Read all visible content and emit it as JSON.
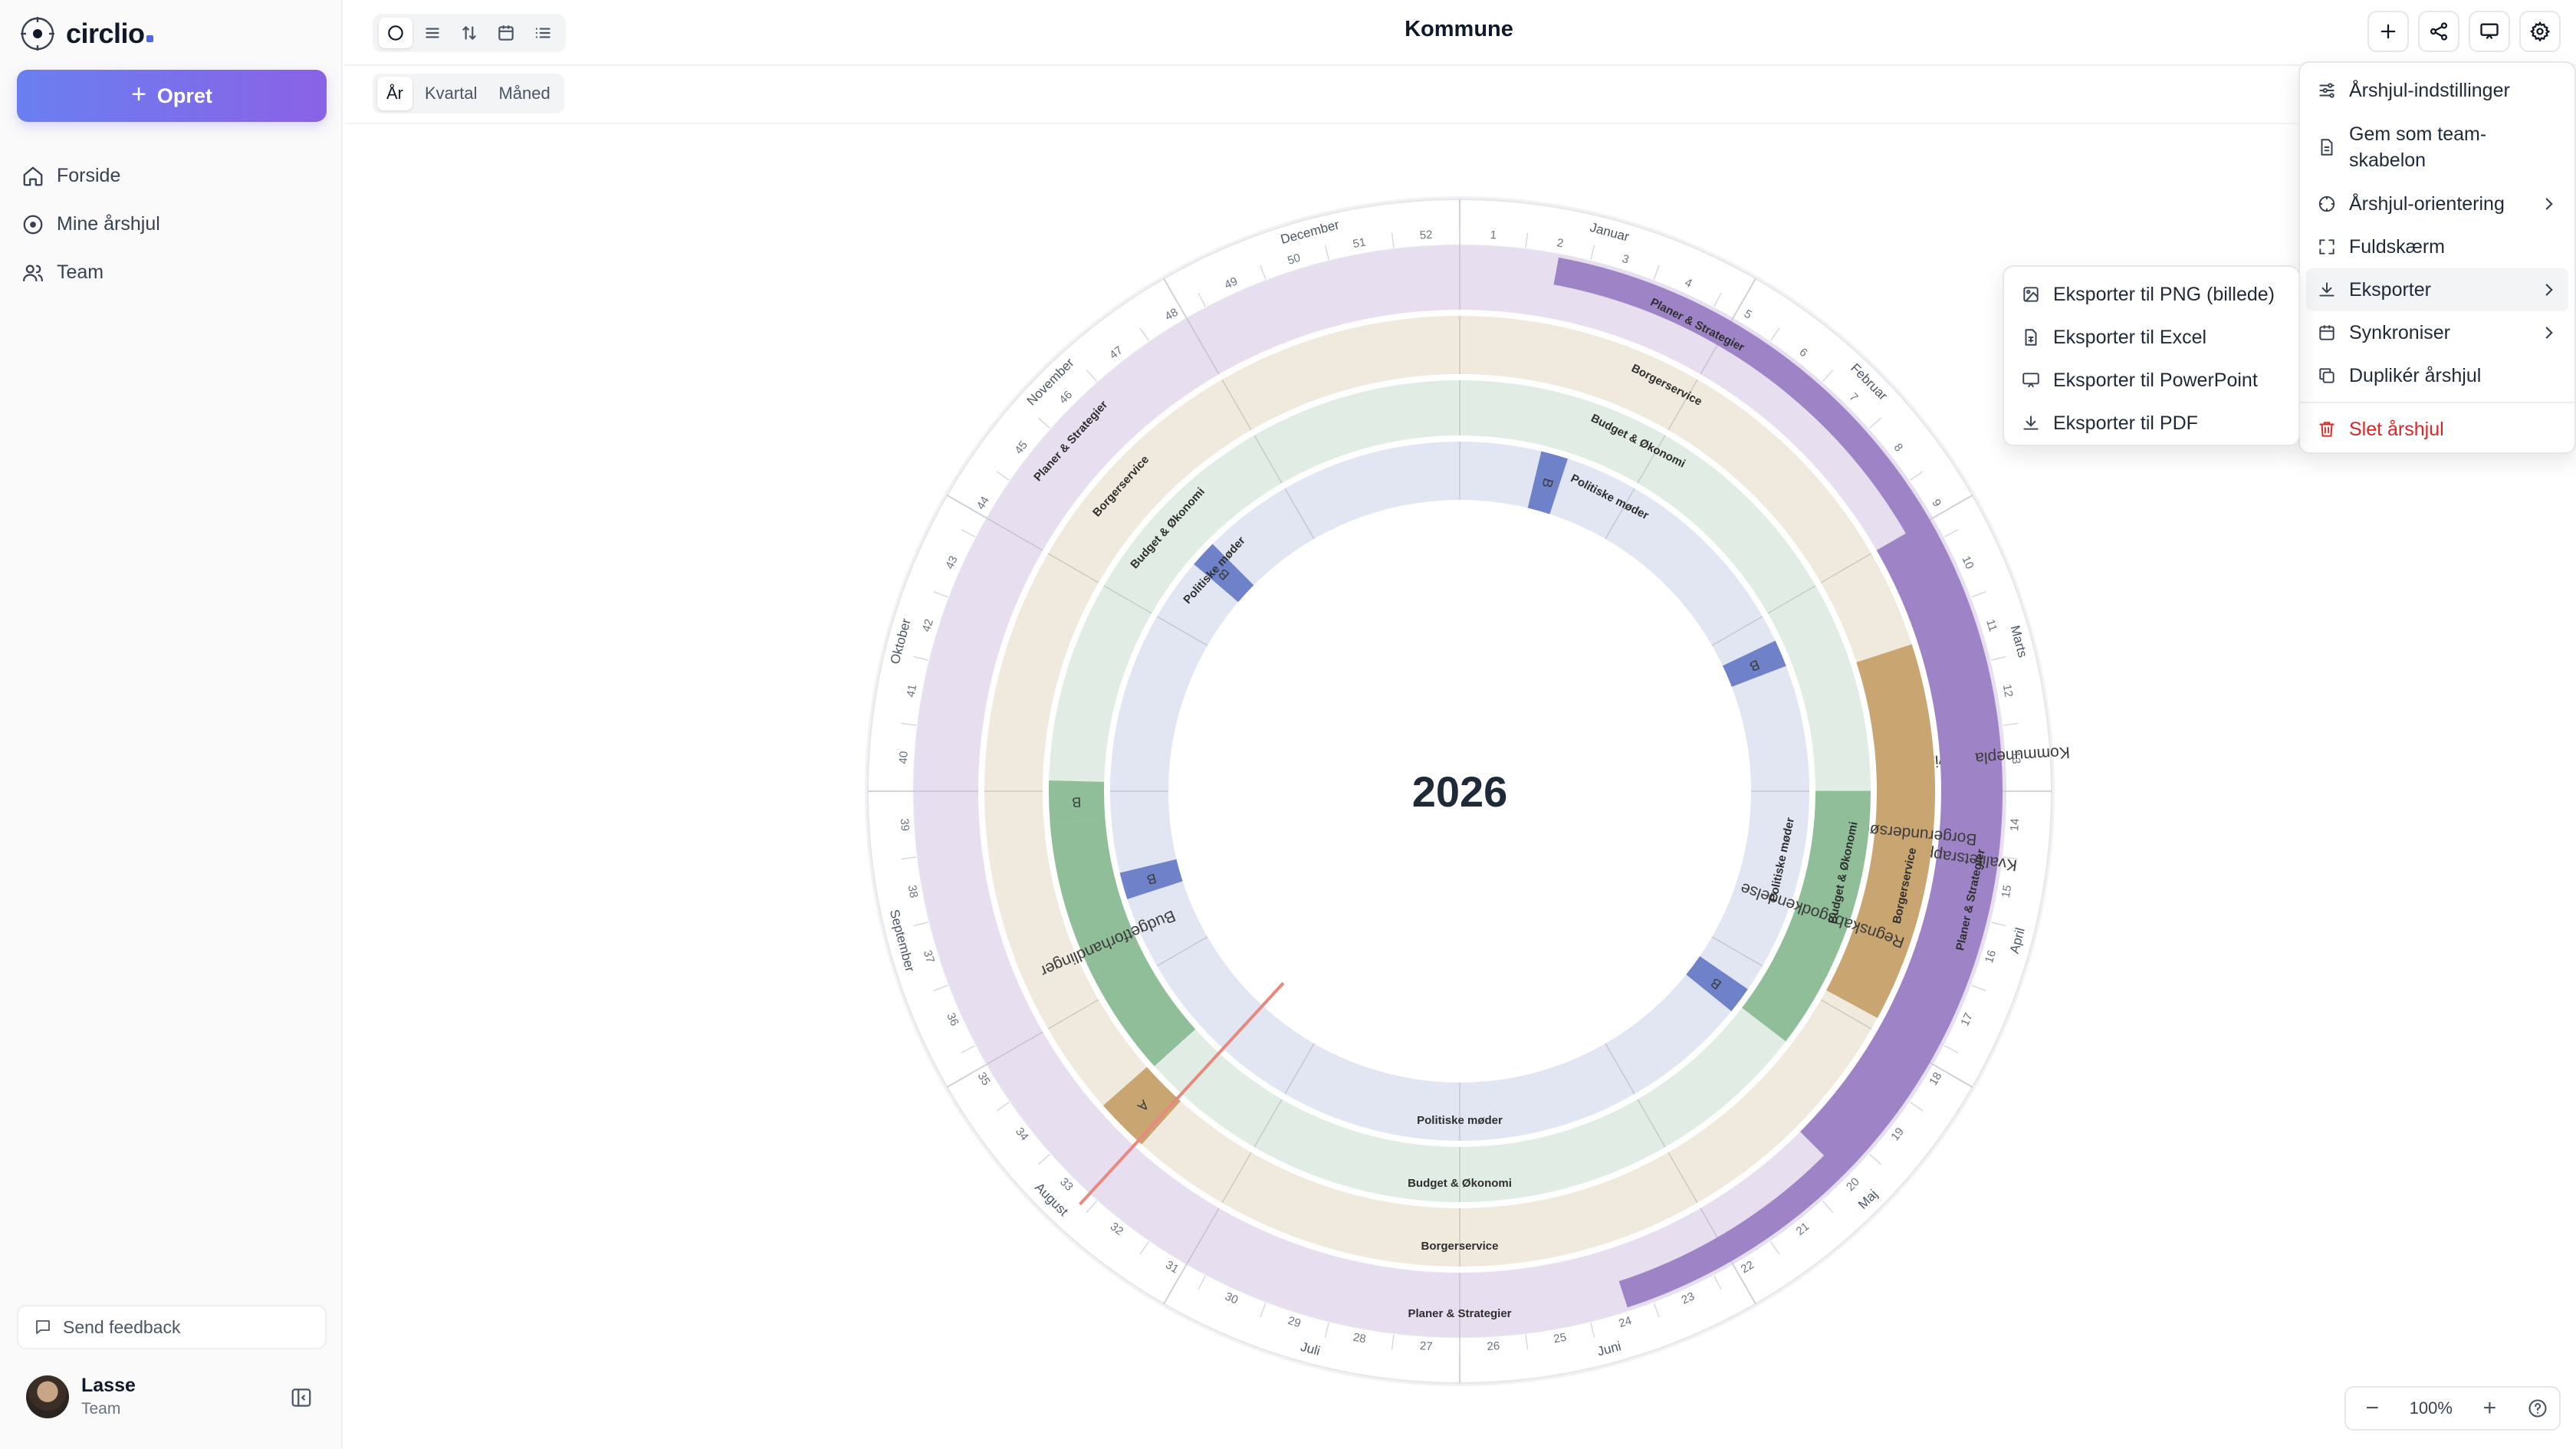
{
  "app": {
    "name": "circlio"
  },
  "sidebar": {
    "create_label": "Opret",
    "items": [
      {
        "label": "Forside",
        "icon": "home-icon"
      },
      {
        "label": "Mine årshjul",
        "icon": "circle-icon"
      },
      {
        "label": "Team",
        "icon": "users-icon"
      }
    ],
    "feedback_label": "Send feedback",
    "user": {
      "name": "Lasse",
      "role": "Team"
    }
  },
  "header": {
    "title": "Kommune"
  },
  "period_tabs": [
    {
      "label": "År",
      "active": true
    },
    {
      "label": "Kvartal",
      "active": false
    },
    {
      "label": "Måned",
      "active": false
    }
  ],
  "settings_menu": {
    "items": [
      {
        "label": "Årshjul-indstillinger",
        "icon": "sliders-icon"
      },
      {
        "label": "Gem som team-skabelon",
        "icon": "template-icon"
      },
      {
        "label": "Årshjul-orientering",
        "icon": "orientation-icon",
        "submenu": true
      },
      {
        "label": "Fuldskærm",
        "icon": "fullscreen-icon"
      },
      {
        "label": "Eksporter",
        "icon": "download-icon",
        "submenu": true,
        "hover": true
      },
      {
        "label": "Synkroniser",
        "icon": "calendar-icon",
        "submenu": true
      },
      {
        "label": "Duplikér årshjul",
        "icon": "copy-icon"
      },
      {
        "label": "Slet årshjul",
        "icon": "trash-icon",
        "danger": true
      }
    ]
  },
  "export_menu": {
    "items": [
      {
        "label": "Eksporter til PNG (billede)",
        "icon": "image-icon"
      },
      {
        "label": "Eksporter til Excel",
        "icon": "spreadsheet-icon"
      },
      {
        "label": "Eksporter til PowerPoint",
        "icon": "presentation-icon"
      },
      {
        "label": "Eksporter til PDF",
        "icon": "download-icon"
      }
    ]
  },
  "zoom": {
    "level": "100%"
  },
  "wheel": {
    "year": "2026",
    "months": [
      "Januar",
      "Februar",
      "Marts",
      "April",
      "Maj",
      "Juni",
      "Juli",
      "August",
      "September",
      "Oktober",
      "November",
      "December"
    ],
    "weeks": 52,
    "rings": [
      {
        "label": "Planer & Strategier",
        "color": "#e7def0"
      },
      {
        "label": "Borgerservice",
        "color": "#f0e9dd"
      },
      {
        "label": "Budget & Økonomi",
        "color": "#e1ede4"
      },
      {
        "label": "Politiske møder",
        "color": "#e2e6f3"
      }
    ],
    "events": [
      {
        "ring": "Planer & Strategier",
        "label": "Kommuneplan-revision",
        "start_month": 0.35,
        "end_month": 5.4,
        "color": "#9e84c6"
      },
      {
        "ring": "Planer & Strategier",
        "label": "Kvalitetsrapporter",
        "start_month": 2.0,
        "end_month": 4.5,
        "color": "#9e84c6"
      },
      {
        "ring": "Borgerservice",
        "label": "Borgerundersøgelse",
        "start_month": 2.4,
        "end_month": 3.95,
        "color": "#c9a572"
      },
      {
        "ring": "Borgerservice",
        "label": "A",
        "start_month": 7.4,
        "end_month": 7.62,
        "color": "#c9a572"
      },
      {
        "ring": "Budget & Økonomi",
        "label": "Regnskabsgodkendelse",
        "start_month": 3.0,
        "end_month": 4.25,
        "color": "#8fbe98"
      },
      {
        "ring": "Budget & Økonomi",
        "label": "Budgetforhandlinger",
        "start_month": 7.6,
        "end_month": 8.85,
        "color": "#8fbe98"
      },
      {
        "ring": "Budget & Økonomi",
        "label": "B",
        "start_month": 8.85,
        "end_month": 9.05,
        "color": "#8fbe98"
      },
      {
        "ring": "Politiske møder",
        "label": "B",
        "start_month": 0.45,
        "end_month": 0.6,
        "color": "#6f82c9"
      },
      {
        "ring": "Politiske møder",
        "label": "B",
        "start_month": 2.15,
        "end_month": 2.3,
        "color": "#6f82c9"
      },
      {
        "ring": "Politiske møder",
        "label": "B",
        "start_month": 4.15,
        "end_month": 4.3,
        "color": "#6f82c9"
      },
      {
        "ring": "Politiske møder",
        "label": "B",
        "start_month": 8.4,
        "end_month": 8.55,
        "color": "#6f82c9"
      },
      {
        "ring": "Politiske møder",
        "label": "B",
        "start_month": 10.35,
        "end_month": 10.5,
        "color": "#6f82c9"
      }
    ],
    "today_month": 7.42,
    "today_color": "#e8897f"
  }
}
